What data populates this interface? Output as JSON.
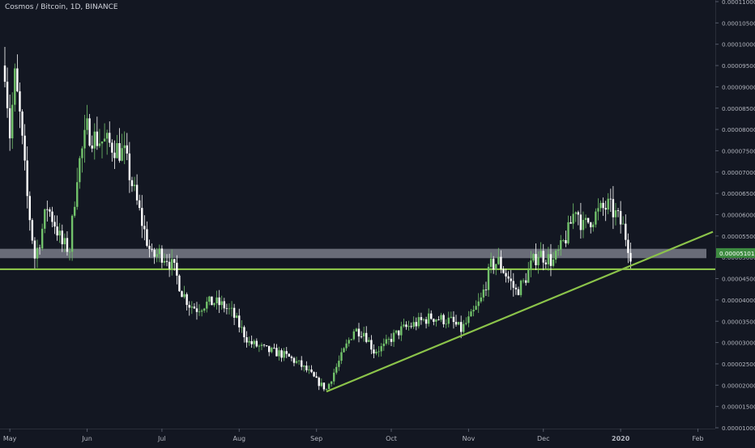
{
  "chart_title": "Cosmos / Bitcoin, 1D, BINANCE",
  "colors": {
    "background": "#131722",
    "up_candle": "#72c26b",
    "down_candle": "#ffffff",
    "trendline": "#8bc34a",
    "zone": "#8a8e9a",
    "axis_text": "#b2b5be",
    "price_label_bg": "#3d8b40"
  },
  "chart_data": {
    "type": "candlestick",
    "title": "Cosmos / Bitcoin, 1D, BINANCE",
    "x_ticks": [
      "May",
      "Jun",
      "Jul",
      "Aug",
      "Sep",
      "Oct",
      "Nov",
      "Dec",
      "2020",
      "Feb"
    ],
    "y_ticks": [
      "0.00011000",
      "0.00010500",
      "0.00010000",
      "0.00009500",
      "0.00009000",
      "0.00008500",
      "0.00008000",
      "0.00007500",
      "0.00007000",
      "0.00006500",
      "0.00006000",
      "0.00005500",
      "0.00005000",
      "0.00004500",
      "0.00004000",
      "0.00003500",
      "0.00003000",
      "0.00002500",
      "0.00002000",
      "0.00001500",
      "0.00001000"
    ],
    "ylim": [
      1e-05,
      0.00011
    ],
    "xlim": [
      "2019-04-29",
      "2020-02-07"
    ],
    "last_price_label": "0.00005101",
    "price_path": [
      [
        "2019-04-29",
        9.5e-05
      ],
      [
        "2019-05-01",
        7.9e-05
      ],
      [
        "2019-05-03",
        9.2e-05
      ],
      [
        "2019-05-05",
        8.3e-05
      ],
      [
        "2019-05-08",
        6.4e-05
      ],
      [
        "2019-05-11",
        5e-05
      ],
      [
        "2019-05-13",
        5.4e-05
      ],
      [
        "2019-05-16",
        6.2e-05
      ],
      [
        "2019-05-19",
        5.8e-05
      ],
      [
        "2019-05-22",
        5.3e-05
      ],
      [
        "2019-05-25",
        5.2e-05
      ],
      [
        "2019-05-28",
        7e-05
      ],
      [
        "2019-06-01",
        8e-05
      ],
      [
        "2019-06-04",
        7.8e-05
      ],
      [
        "2019-06-08",
        7.7e-05
      ],
      [
        "2019-06-12",
        7.6e-05
      ],
      [
        "2019-06-16",
        7.4e-05
      ],
      [
        "2019-06-20",
        6.5e-05
      ],
      [
        "2019-06-24",
        5.6e-05
      ],
      [
        "2019-06-27",
        5e-05
      ],
      [
        "2019-06-30",
        5.1e-05
      ],
      [
        "2019-07-03",
        5e-05
      ],
      [
        "2019-07-06",
        4.7e-05
      ],
      [
        "2019-07-09",
        4.2e-05
      ],
      [
        "2019-07-12",
        3.9e-05
      ],
      [
        "2019-07-15",
        3.8e-05
      ],
      [
        "2019-07-18",
        3.9e-05
      ],
      [
        "2019-07-22",
        3.95e-05
      ],
      [
        "2019-07-26",
        3.85e-05
      ],
      [
        "2019-07-29",
        3.7e-05
      ],
      [
        "2019-08-02",
        3.3e-05
      ],
      [
        "2019-08-05",
        3e-05
      ],
      [
        "2019-08-09",
        2.9e-05
      ],
      [
        "2019-08-13",
        2.8e-05
      ],
      [
        "2019-08-17",
        2.75e-05
      ],
      [
        "2019-08-21",
        2.65e-05
      ],
      [
        "2019-08-25",
        2.5e-05
      ],
      [
        "2019-08-29",
        2.3e-05
      ],
      [
        "2019-09-01",
        2.1e-05
      ],
      [
        "2019-09-05",
        1.9e-05
      ],
      [
        "2019-09-08",
        2.3e-05
      ],
      [
        "2019-09-12",
        2.8e-05
      ],
      [
        "2019-09-16",
        3.3e-05
      ],
      [
        "2019-09-20",
        3.25e-05
      ],
      [
        "2019-09-24",
        2.8e-05
      ],
      [
        "2019-09-28",
        2.9e-05
      ],
      [
        "2019-10-01",
        3.1e-05
      ],
      [
        "2019-10-05",
        3.3e-05
      ],
      [
        "2019-10-09",
        3.4e-05
      ],
      [
        "2019-10-13",
        3.5e-05
      ],
      [
        "2019-10-17",
        3.6e-05
      ],
      [
        "2019-10-21",
        3.55e-05
      ],
      [
        "2019-10-25",
        3.5e-05
      ],
      [
        "2019-10-29",
        3.3e-05
      ],
      [
        "2019-11-02",
        3.6e-05
      ],
      [
        "2019-11-06",
        4e-05
      ],
      [
        "2019-11-10",
        4.8e-05
      ],
      [
        "2019-11-13",
        4.9e-05
      ],
      [
        "2019-11-16",
        4.6e-05
      ],
      [
        "2019-11-20",
        4.2e-05
      ],
      [
        "2019-11-23",
        4.4e-05
      ],
      [
        "2019-11-26",
        4.8e-05
      ],
      [
        "2019-11-29",
        5.1e-05
      ],
      [
        "2019-12-02",
        5e-05
      ],
      [
        "2019-12-05",
        4.9e-05
      ],
      [
        "2019-12-08",
        5.2e-05
      ],
      [
        "2019-12-11",
        5.6e-05
      ],
      [
        "2019-12-14",
        6.2e-05
      ],
      [
        "2019-12-17",
        5.7e-05
      ],
      [
        "2019-12-20",
        5.9e-05
      ],
      [
        "2019-12-24",
        6.1e-05
      ],
      [
        "2019-12-27",
        6.2e-05
      ],
      [
        "2019-12-30",
        6e-05
      ],
      [
        "2020-01-02",
        5.7e-05
      ],
      [
        "2020-01-05",
        5.1e-05
      ]
    ],
    "support_zone": [
      4.98e-05,
      5.2e-05
    ],
    "horizontal_line": 4.72e-05,
    "trendline": [
      [
        "2019-09-05",
        1.85e-05
      ],
      [
        "2020-02-07",
        5.6e-05
      ]
    ]
  }
}
